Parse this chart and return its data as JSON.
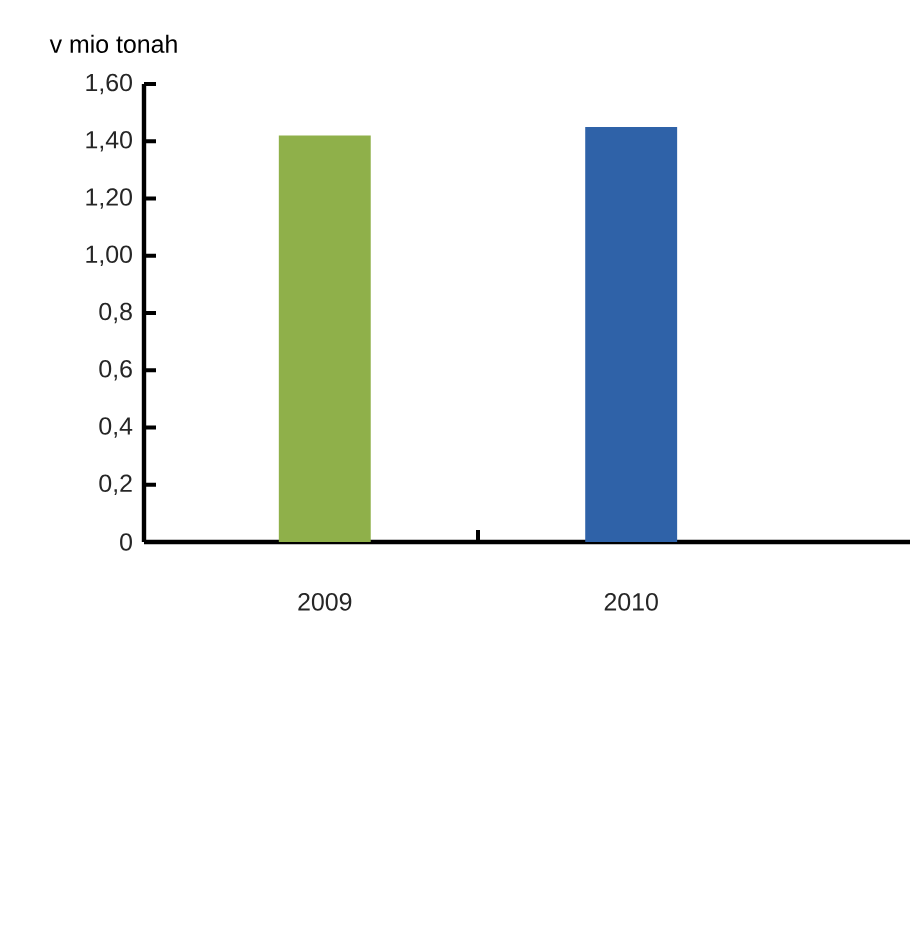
{
  "chart_data": {
    "type": "bar",
    "ylabel": "v mio tonah",
    "categories": [
      "2009",
      "2010"
    ],
    "values": [
      1.42,
      1.45
    ],
    "colors": [
      "#8fb04a",
      "#2f62a8"
    ],
    "ylim": [
      0,
      1.6
    ],
    "yticks": [
      0,
      {
        "value": 0.2,
        "label": "0,2"
      },
      {
        "value": 0.4,
        "label": "0,4"
      },
      {
        "value": 0.6,
        "label": "0,6"
      },
      {
        "value": 0.8,
        "label": "0,8"
      },
      {
        "value": 1.0,
        "label": "1,00"
      },
      {
        "value": 1.2,
        "label": "1,20"
      },
      {
        "value": 1.4,
        "label": "1,40"
      },
      {
        "value": 1.6,
        "label": "1,60"
      }
    ]
  }
}
